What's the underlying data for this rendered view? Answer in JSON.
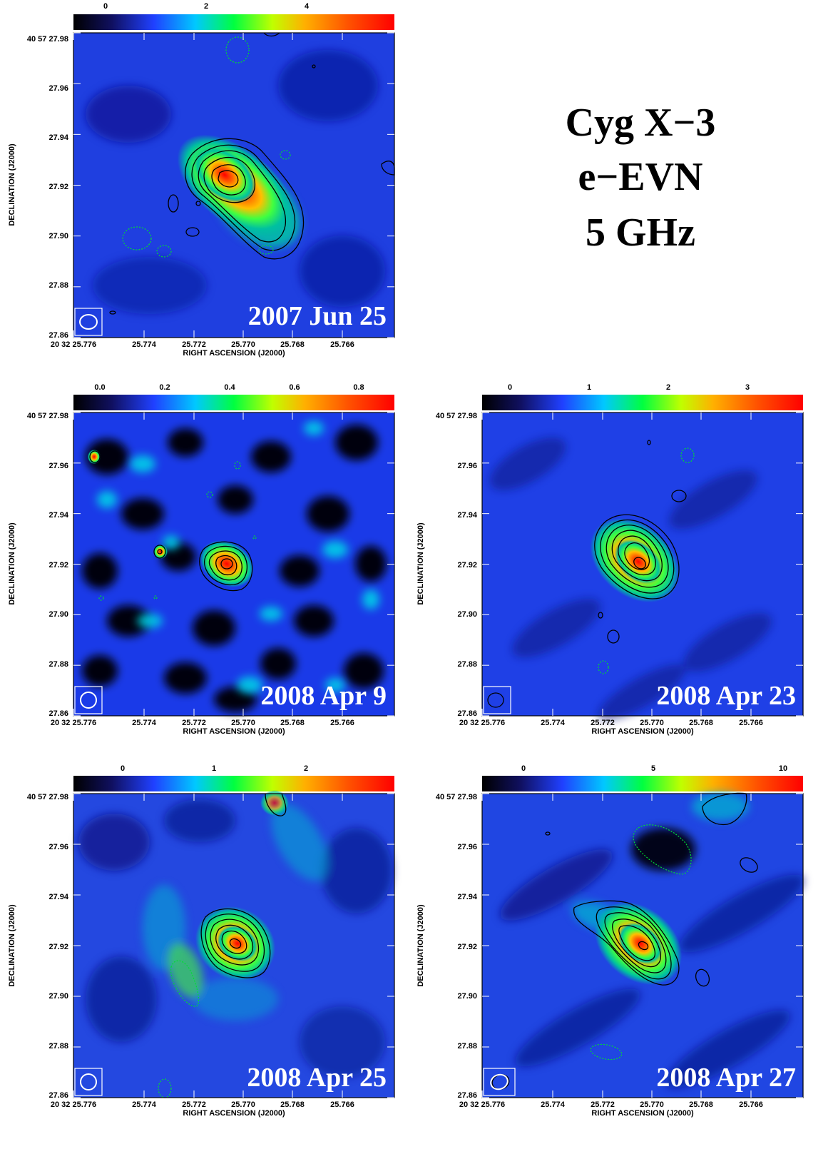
{
  "title": {
    "lines": [
      "Cyg X−3",
      "e−EVN",
      "5 GHz"
    ]
  },
  "axes": {
    "xlabel": "RIGHT ASCENSION (J2000)",
    "ylabel": "DECLINATION (J2000)",
    "xticks": [
      "20 32 25.776",
      "25.774",
      "25.772",
      "25.770",
      "25.768",
      "25.766"
    ],
    "yticks": [
      "40 57 27.98",
      "27.96",
      "27.94",
      "27.92",
      "27.90",
      "27.88",
      "27.86"
    ]
  },
  "panels": [
    {
      "date": "2007 Jun 25",
      "colorbar_ticks": [
        "0",
        "2",
        "4"
      ]
    },
    {
      "date": "2008 Apr 9",
      "colorbar_ticks": [
        "0.0",
        "0.2",
        "0.4",
        "0.6",
        "0.8"
      ]
    },
    {
      "date": "2008 Apr 23",
      "colorbar_ticks": [
        "0",
        "1",
        "2",
        "3"
      ]
    },
    {
      "date": "2008 Apr 25",
      "colorbar_ticks": [
        "0",
        "1",
        "2"
      ]
    },
    {
      "date": "2008 Apr 27",
      "colorbar_ticks": [
        "0",
        "5",
        "10"
      ]
    }
  ],
  "colors": {
    "background_map": "#1f3fe0",
    "contour": "#000000",
    "negative_contour": "#00cc33"
  }
}
